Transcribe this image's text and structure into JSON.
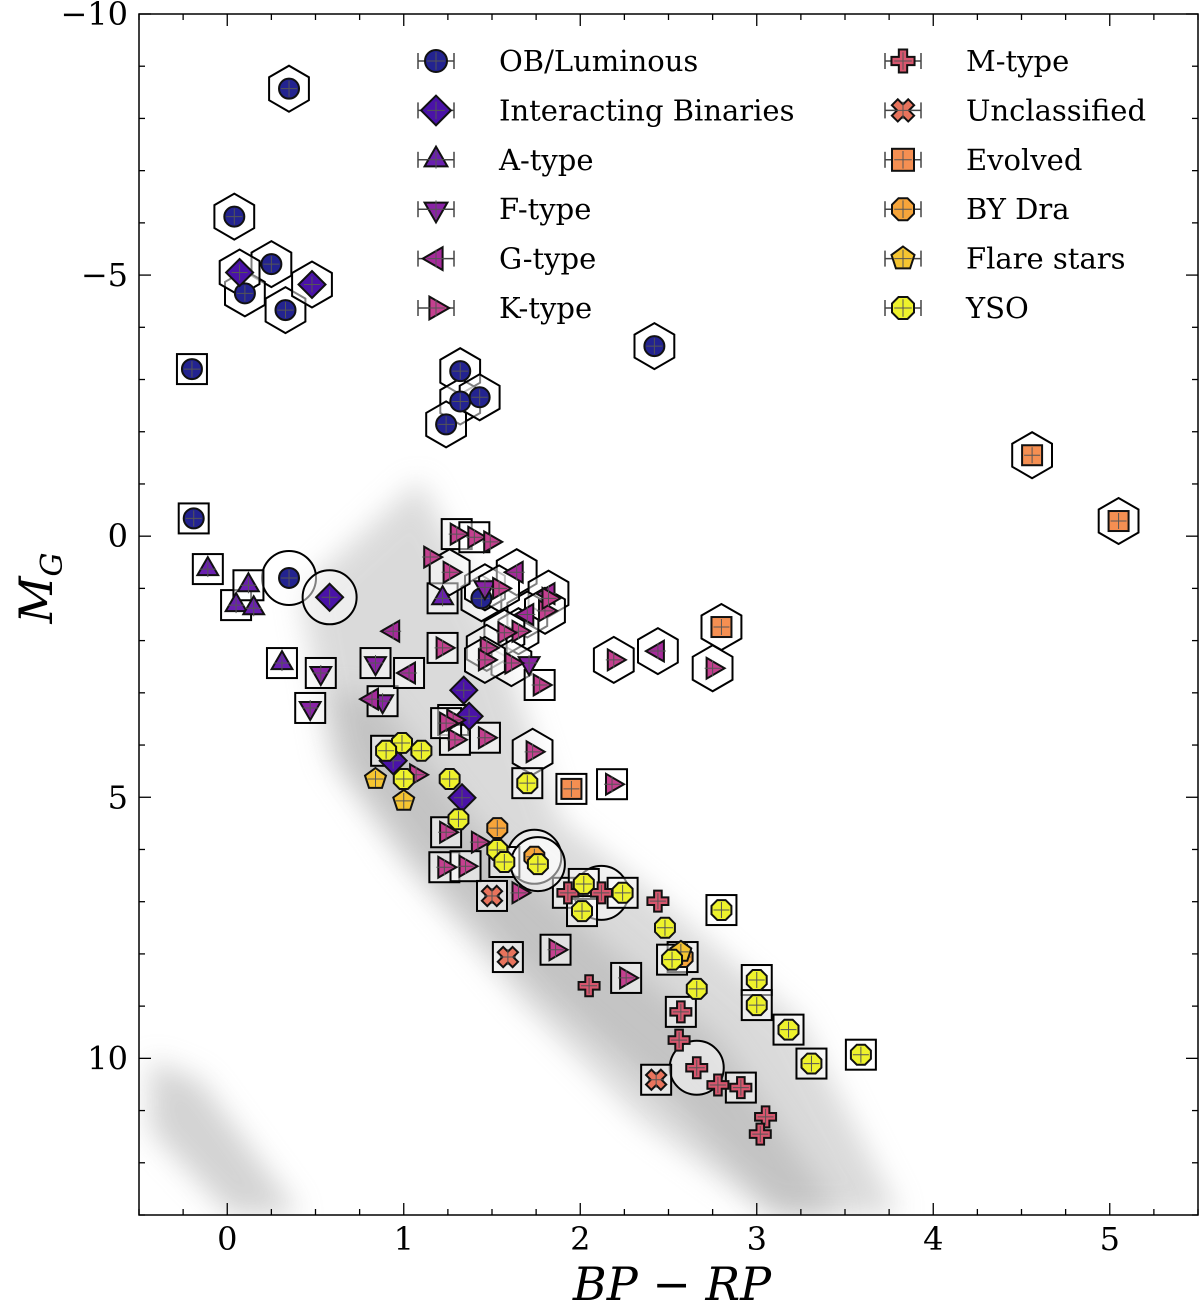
{
  "chart_data": {
    "type": "scatter",
    "xlabel": "BP − RP",
    "ylabel": "M",
    "ylabel_sub": "G",
    "xlim": [
      -0.5,
      5.5
    ],
    "ylim": [
      -10,
      13
    ],
    "y_inverted": true,
    "grid": false,
    "legend_placement": "top-right",
    "x_ticks": [
      0,
      1,
      2,
      3,
      4,
      5
    ],
    "x_tick_labels": [
      "0",
      "1",
      "2",
      "3",
      "4",
      "5"
    ],
    "y_ticks": [
      -10,
      -5,
      0,
      5,
      10
    ],
    "y_tick_labels": [
      "−10",
      "−5",
      "0",
      "5",
      "10"
    ],
    "background": "grey hexbin density of field stars (main sequence and white dwarf sequence)",
    "series": [
      {
        "name": "OB/Luminous",
        "marker": "circle",
        "color": "#232390",
        "points": [
          [
            0.35,
            -8.57,
            "hex"
          ],
          [
            0.04,
            -6.12,
            "hex"
          ],
          [
            0.25,
            -5.21,
            "hex"
          ],
          [
            0.1,
            -4.65,
            "hex"
          ],
          [
            0.33,
            -4.33,
            "hex"
          ],
          [
            -0.2,
            -3.2,
            "square"
          ],
          [
            2.42,
            -3.64,
            "hex"
          ],
          [
            1.32,
            -3.16,
            "hex"
          ],
          [
            1.32,
            -2.58,
            "hex"
          ],
          [
            1.43,
            -2.66,
            "hex"
          ],
          [
            1.24,
            -2.14,
            "hex"
          ],
          [
            -0.19,
            -0.34,
            "square"
          ],
          [
            0.35,
            0.8,
            "circle"
          ],
          [
            1.44,
            1.19,
            "hex"
          ]
        ]
      },
      {
        "name": "Interacting Binaries",
        "marker": "diamond",
        "color": "#4a12a8",
        "points": [
          [
            0.07,
            -5.05,
            "hex"
          ],
          [
            0.48,
            -4.82,
            "hex"
          ],
          [
            0.58,
            1.17,
            "circle"
          ],
          [
            1.34,
            2.95,
            null
          ],
          [
            1.37,
            3.45,
            null
          ],
          [
            1.33,
            5.01,
            null
          ],
          [
            0.94,
            4.3,
            null
          ]
        ]
      },
      {
        "name": "A-type",
        "marker": "triangle-up",
        "color": "#6a1fb0",
        "points": [
          [
            -0.11,
            0.63,
            "square"
          ],
          [
            0.05,
            1.32,
            "square"
          ],
          [
            0.12,
            0.94,
            "square"
          ],
          [
            0.15,
            1.38,
            null
          ],
          [
            0.31,
            2.43,
            "square"
          ],
          [
            1.22,
            1.19,
            "square"
          ]
        ]
      },
      {
        "name": "F-type",
        "marker": "triangle-down",
        "color": "#8a22a6",
        "points": [
          [
            0.53,
            2.62,
            "square"
          ],
          [
            0.47,
            3.29,
            "square"
          ],
          [
            0.84,
            2.43,
            "square"
          ],
          [
            0.88,
            3.16,
            "square"
          ],
          [
            1.71,
            2.43,
            null
          ],
          [
            1.46,
            0.98,
            "hex"
          ]
        ]
      },
      {
        "name": "G-type",
        "marker": "triangle-left",
        "color": "#a62a9b",
        "points": [
          [
            0.94,
            1.82,
            null
          ],
          [
            1.03,
            2.62,
            "square"
          ],
          [
            0.82,
            3.12,
            null
          ],
          [
            2.44,
            2.2,
            "hex"
          ],
          [
            1.64,
            0.69,
            "hex"
          ],
          [
            1.82,
            1.1,
            "hex"
          ],
          [
            1.7,
            1.5,
            "hex"
          ]
        ]
      },
      {
        "name": "K-type",
        "marker": "triangle-right",
        "color": "#c4408f",
        "points": [
          [
            1.3,
            -0.04,
            "square"
          ],
          [
            1.4,
            0.02,
            "square"
          ],
          [
            1.15,
            0.4,
            null
          ],
          [
            1.26,
            0.69,
            "hex"
          ],
          [
            1.49,
            0.11,
            null
          ],
          [
            1.54,
            1.0,
            "hex"
          ],
          [
            1.8,
            1.43,
            "hex"
          ],
          [
            1.65,
            1.82,
            "hex"
          ],
          [
            1.57,
            1.85,
            "hex"
          ],
          [
            1.82,
            1.19,
            null
          ],
          [
            1.22,
            2.14,
            "square"
          ],
          [
            1.47,
            2.14,
            "hex"
          ],
          [
            1.61,
            2.43,
            "hex"
          ],
          [
            1.77,
            2.85,
            "square"
          ],
          [
            1.46,
            2.37,
            "hex"
          ],
          [
            1.28,
            3.52,
            "square"
          ],
          [
            1.29,
            3.9,
            "square"
          ],
          [
            1.46,
            3.86,
            "square"
          ],
          [
            2.19,
            2.37,
            "hex"
          ],
          [
            2.75,
            2.53,
            "hex"
          ],
          [
            1.73,
            4.13,
            "hex"
          ],
          [
            2.18,
            4.75,
            "square"
          ],
          [
            1.24,
            5.67,
            "square"
          ],
          [
            1.42,
            5.86,
            null
          ],
          [
            1.23,
            6.34,
            "square"
          ],
          [
            1.35,
            6.32,
            "square"
          ],
          [
            1.65,
            6.83,
            null
          ],
          [
            1.86,
            7.92,
            "square"
          ],
          [
            2.26,
            8.46,
            "square"
          ],
          [
            1.24,
            3.58,
            "square"
          ],
          [
            1.07,
            4.57,
            null
          ]
        ]
      },
      {
        "name": "M-type",
        "marker": "plus",
        "color": "#d8566e",
        "points": [
          [
            1.93,
            6.83,
            "square"
          ],
          [
            2.12,
            6.83,
            "circle"
          ],
          [
            2.44,
            6.99,
            null
          ],
          [
            2.05,
            8.61,
            null
          ],
          [
            2.57,
            9.11,
            "square"
          ],
          [
            2.56,
            9.65,
            null
          ],
          [
            2.66,
            10.18,
            "circle"
          ],
          [
            2.78,
            10.51,
            null
          ],
          [
            2.91,
            10.56,
            "square"
          ],
          [
            3.05,
            11.12,
            null
          ],
          [
            3.02,
            11.45,
            null
          ]
        ]
      },
      {
        "name": "Unclassified",
        "marker": "x",
        "color": "#e8735c",
        "points": [
          [
            1.5,
            6.89,
            "square"
          ],
          [
            1.59,
            8.06,
            "square"
          ],
          [
            2.43,
            10.41,
            "square"
          ]
        ]
      },
      {
        "name": "Evolved",
        "marker": "square",
        "color": "#f58f52",
        "points": [
          [
            4.56,
            -1.55,
            "hex"
          ],
          [
            5.05,
            -0.29,
            "hex"
          ],
          [
            2.8,
            1.74,
            "hex"
          ],
          [
            1.95,
            4.84,
            "square"
          ]
        ]
      },
      {
        "name": "BY Dra",
        "marker": "octagon",
        "color": "#f7a53a",
        "points": [
          [
            1.53,
            5.59,
            null
          ],
          [
            1.74,
            6.14,
            "circle"
          ],
          [
            2.58,
            8.06,
            "square"
          ]
        ]
      },
      {
        "name": "Flare stars",
        "marker": "pentagon",
        "color": "#f5c531",
        "points": [
          [
            0.84,
            4.65,
            null
          ],
          [
            1.0,
            5.07,
            null
          ],
          [
            2.57,
            7.96,
            null
          ]
        ]
      },
      {
        "name": "YSO",
        "marker": "octagon",
        "color": "#eef22c",
        "points": [
          [
            0.99,
            3.96,
            null
          ],
          [
            1.1,
            4.11,
            null
          ],
          [
            0.9,
            4.11,
            "square"
          ],
          [
            1.0,
            4.65,
            null
          ],
          [
            1.26,
            4.65,
            null
          ],
          [
            1.31,
            5.42,
            null
          ],
          [
            1.53,
            6.01,
            null
          ],
          [
            1.57,
            6.24,
            "square"
          ],
          [
            1.76,
            6.28,
            "circle"
          ],
          [
            1.7,
            4.73,
            "square"
          ],
          [
            2.02,
            6.66,
            "square"
          ],
          [
            2.01,
            7.18,
            "square"
          ],
          [
            2.24,
            6.83,
            "square"
          ],
          [
            2.8,
            7.16,
            "square"
          ],
          [
            2.48,
            7.5,
            null
          ],
          [
            2.52,
            8.11,
            "square"
          ],
          [
            2.66,
            8.67,
            null
          ],
          [
            3.0,
            8.5,
            "square"
          ],
          [
            3.0,
            8.98,
            "square"
          ],
          [
            3.18,
            9.45,
            "square"
          ],
          [
            3.31,
            10.1,
            "square"
          ],
          [
            3.59,
            9.93,
            "square"
          ]
        ]
      }
    ]
  }
}
